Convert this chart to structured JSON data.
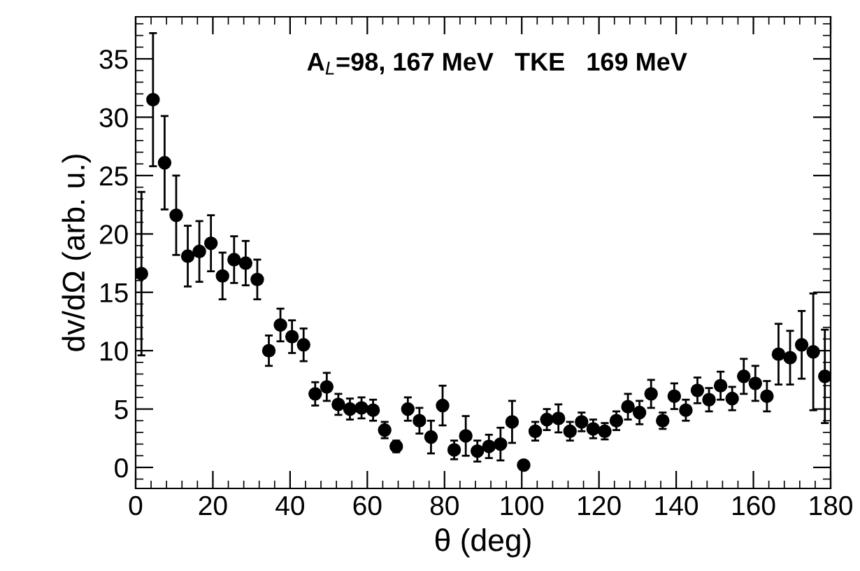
{
  "chart_data": {
    "type": "scatter",
    "xlabel": "θ (deg)",
    "ylabel": "dv/dΩ (arb. u.)",
    "annotations": [
      "A$_{L}$=98, 167 MeV   TKE   169 MeV"
    ],
    "xlim": [
      0,
      180
    ],
    "xticks": [
      0,
      20,
      40,
      60,
      80,
      100,
      120,
      140,
      160,
      180
    ],
    "ylim": [
      -1.8,
      38.6
    ],
    "yticks": [
      0,
      5,
      10,
      15,
      20,
      25,
      30,
      35
    ],
    "grid": false,
    "marker": "circle",
    "series": [
      {
        "color": "#000000",
        "x": [
          1.5,
          4.5,
          7.5,
          10.5,
          13.5,
          16.5,
          19.5,
          22.5,
          25.5,
          28.5,
          31.5,
          34.5,
          37.5,
          40.5,
          43.5,
          46.5,
          49.5,
          52.5,
          55.5,
          58.5,
          61.5,
          64.5,
          67.5,
          70.5,
          73.5,
          76.5,
          79.5,
          82.5,
          85.5,
          88.5,
          91.5,
          94.5,
          97.5,
          100.5,
          103.5,
          106.5,
          109.5,
          112.5,
          115.5,
          118.5,
          121.5,
          124.5,
          127.5,
          130.5,
          133.5,
          136.5,
          139.5,
          142.5,
          145.5,
          148.5,
          151.5,
          154.5,
          157.5,
          160.5,
          163.5,
          166.5,
          169.5,
          172.5,
          175.5,
          178.5
        ],
        "values": [
          16.6,
          31.5,
          26.1,
          21.6,
          18.1,
          18.5,
          19.2,
          16.4,
          17.8,
          17.5,
          16.1,
          10.0,
          12.2,
          11.2,
          10.5,
          6.3,
          6.9,
          5.4,
          5.0,
          5.1,
          4.9,
          3.2,
          1.8,
          5.0,
          4.0,
          2.6,
          5.3,
          1.5,
          2.7,
          1.4,
          1.8,
          2.0,
          3.9,
          0.2,
          3.1,
          4.1,
          4.2,
          3.1,
          3.9,
          3.3,
          3.1,
          4.0,
          5.2,
          4.7,
          6.3,
          4.0,
          6.1,
          4.9,
          6.6,
          5.8,
          7.0,
          5.9,
          7.8,
          7.2,
          6.1,
          9.7,
          9.4,
          10.5,
          9.9,
          7.8
        ],
        "errors": [
          7,
          5.7,
          4,
          3.4,
          2.6,
          2.6,
          2.4,
          2,
          2,
          1.9,
          1.7,
          1.3,
          1.4,
          1.4,
          1.4,
          1,
          1.2,
          0.9,
          0.9,
          0.9,
          0.9,
          0.7,
          0.5,
          1,
          1.1,
          1.4,
          1.7,
          0.8,
          1.7,
          0.9,
          1,
          1.4,
          1.8,
          null,
          0.8,
          0.9,
          1.2,
          0.8,
          0.8,
          0.8,
          0.7,
          0.8,
          1.1,
          1,
          1.2,
          0.7,
          1.1,
          0.9,
          1.1,
          1,
          1.2,
          1,
          1.5,
          1.5,
          1.3,
          2.6,
          2.3,
          2.9,
          5,
          4
        ]
      }
    ]
  }
}
